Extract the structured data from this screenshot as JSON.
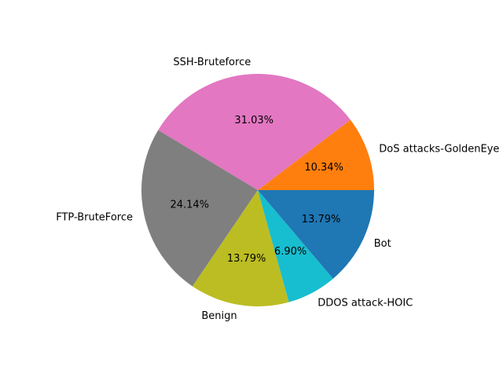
{
  "chart_data": {
    "type": "pie",
    "title": "",
    "start_angle_deg": 0,
    "direction": "counterclockwise",
    "slices": [
      {
        "label": "DoS attacks-GoldenEye",
        "value": 10.34,
        "pct_label": "10.34%",
        "color": "#ff7f0e"
      },
      {
        "label": "SSH-Bruteforce",
        "value": 31.03,
        "pct_label": "31.03%",
        "color": "#e377c2"
      },
      {
        "label": "FTP-BruteForce",
        "value": 24.14,
        "pct_label": "24.14%",
        "color": "#7f7f7f"
      },
      {
        "label": "Benign",
        "value": 13.79,
        "pct_label": "13.79%",
        "color": "#bcbd22"
      },
      {
        "label": "DDOS attack-HOIC",
        "value": 6.9,
        "pct_label": "6.90%",
        "color": "#17becf"
      },
      {
        "label": "Bot",
        "value": 13.79,
        "pct_label": "13.79%",
        "color": "#1f77b4"
      }
    ]
  }
}
